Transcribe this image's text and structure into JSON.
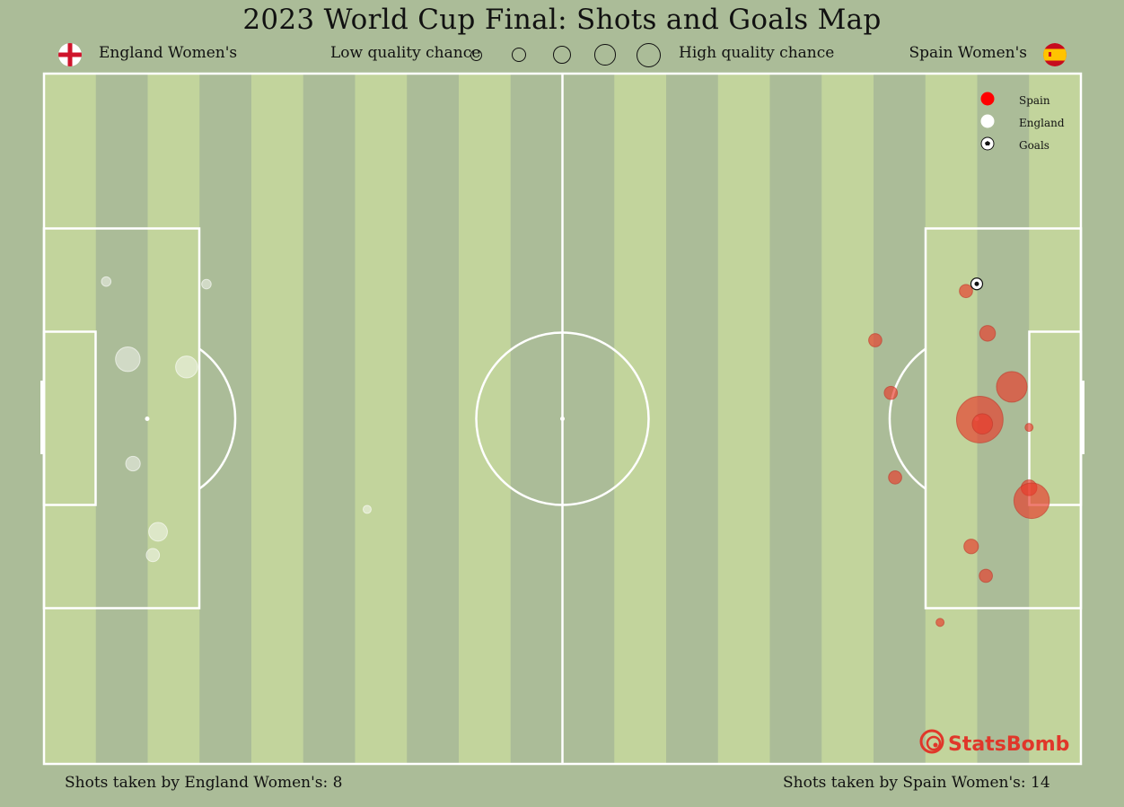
{
  "title": "2023 World Cup Final: Shots and Goals Map",
  "teams": {
    "left": {
      "name": "England Women's",
      "flag_icon": "england-flag-icon",
      "shots_label": "Shots taken by England Women's: 8"
    },
    "right": {
      "name": "Spain Women's",
      "flag_icon": "spain-flag-icon",
      "shots_label": "Shots taken by Spain Women's: 14"
    }
  },
  "size_legend": {
    "low_label": "Low quality chance",
    "high_label": "High quality chance",
    "steps": 5
  },
  "colors": {
    "background": "#abbc98",
    "stripe_light": "#c2d49c",
    "lines": "#ffffff",
    "spain": "#e8392a",
    "england": "#ffffff",
    "logo": "#e0372a"
  },
  "chart_data": {
    "type": "scatter",
    "pitch": {
      "length": 120,
      "width": 80,
      "orientation": "horizontal"
    },
    "legend": {
      "placement": "top-right",
      "entries": [
        "Spain",
        "England",
        "Goals"
      ]
    },
    "series": [
      {
        "name": "England",
        "direction": "left",
        "points": [
          {
            "x": 107.4,
            "y": 24.2,
            "xg": 0.03,
            "goal": false
          },
          {
            "x": 106.8,
            "y": 26.9,
            "xg": 0.08,
            "goal": false
          },
          {
            "x": 109.7,
            "y": 34.8,
            "xg": 0.04,
            "goal": false
          },
          {
            "x": 110.3,
            "y": 46.9,
            "xg": 0.16,
            "goal": false
          },
          {
            "x": 103.5,
            "y": 46.0,
            "xg": 0.12,
            "goal": false
          },
          {
            "x": 112.8,
            "y": 55.9,
            "xg": 0.01,
            "goal": false
          },
          {
            "x": 101.2,
            "y": 55.6,
            "xg": 0.01,
            "goal": false
          },
          {
            "x": 82.6,
            "y": 29.5,
            "xg": 0.005,
            "goal": false
          }
        ]
      },
      {
        "name": "Spain",
        "direction": "right",
        "points": [
          {
            "x": 106.7,
            "y": 25.2,
            "xg": 0.03,
            "goal": true
          },
          {
            "x": 109.2,
            "y": 30.1,
            "xg": 0.05,
            "goal": false
          },
          {
            "x": 96.2,
            "y": 30.9,
            "xg": 0.03,
            "goal": false
          },
          {
            "x": 112.0,
            "y": 36.3,
            "xg": 0.27,
            "goal": false
          },
          {
            "x": 98.0,
            "y": 37.0,
            "xg": 0.03,
            "goal": false
          },
          {
            "x": 108.3,
            "y": 40.1,
            "xg": 0.7,
            "goal": false
          },
          {
            "x": 108.6,
            "y": 40.6,
            "xg": 0.1,
            "goal": false
          },
          {
            "x": 98.5,
            "y": 46.8,
            "xg": 0.03,
            "goal": false
          },
          {
            "x": 114.0,
            "y": 48.0,
            "xg": 0.05,
            "goal": false
          },
          {
            "x": 114.3,
            "y": 49.5,
            "xg": 0.38,
            "goal": false
          },
          {
            "x": 107.3,
            "y": 54.8,
            "xg": 0.04,
            "goal": false
          },
          {
            "x": 109.0,
            "y": 58.2,
            "xg": 0.03,
            "goal": false
          },
          {
            "x": 103.7,
            "y": 63.6,
            "xg": 0.005,
            "goal": false
          },
          {
            "x": 114.0,
            "y": 41.0,
            "xg": 0.005,
            "goal": false
          }
        ]
      }
    ]
  },
  "logo": {
    "text": "StatsBomb",
    "icon": "statsbomb-logo-icon"
  }
}
